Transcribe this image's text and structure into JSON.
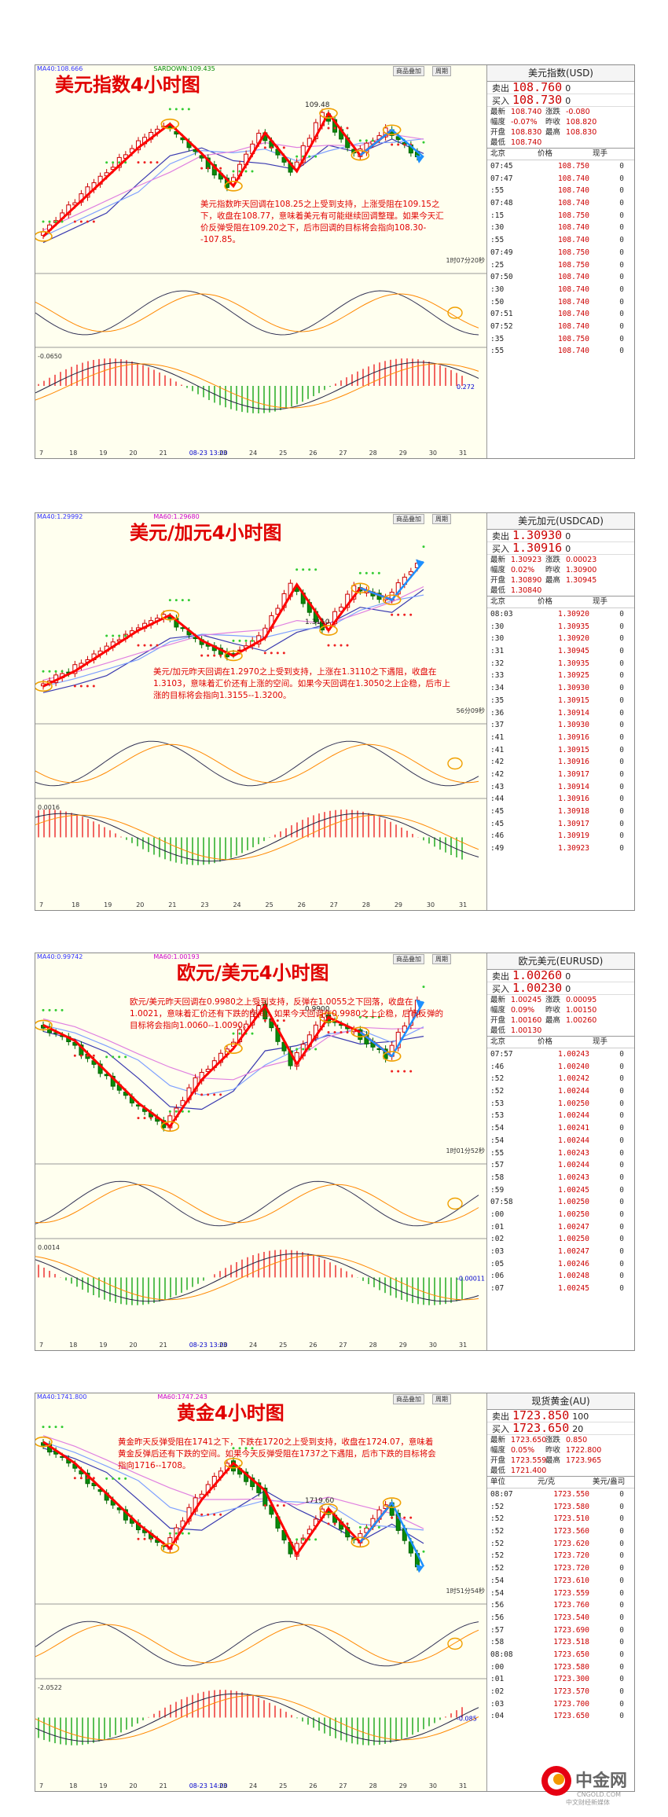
{
  "panels": [
    {
      "title": "美元指数4小时图",
      "note": "美元指数昨天回调在108.25之上受到支持，上涨受阻在109.15之下，收盘在108.77，意味着美元有可能继续回调整理。如果今天汇价反弹受阻在109.20之下，后市回调的目标将会指向108.30--107.85。",
      "indicator_top": "MA40:108.666",
      "sar_label": "SARDOWN:109.435",
      "high_label": "109.48",
      "timer": "1时07分20秒",
      "macd_label": "-0.0650",
      "macd_side": "0.272",
      "x_ticks": [
        "7",
        "18",
        "19",
        "20",
        "21",
        "08-23 13:00",
        "23",
        "24",
        "25",
        "26",
        "27",
        "28",
        "29",
        "30",
        "31"
      ],
      "quote": {
        "name": "美元指数(USD)",
        "sell_label": "卖出",
        "sell": "108.760",
        "sell_suffix": "0",
        "buy_label": "买入",
        "buy": "108.730",
        "buy_suffix": "0",
        "stats": [
          [
            "最新",
            "108.740",
            "涨跌",
            "-0.080"
          ],
          [
            "幅度",
            "-0.07%",
            "昨收",
            "108.820"
          ],
          [
            "开盘",
            "108.830",
            "最高",
            "108.830"
          ],
          [
            "最低",
            "108.740",
            "",
            ""
          ]
        ],
        "tick_head": [
          "北京",
          "价格",
          "现手"
        ],
        "ticks": [
          [
            "07:45",
            "108.750",
            "0"
          ],
          [
            "07:47",
            "108.740",
            "0"
          ],
          [
            ":55",
            "108.740",
            "0"
          ],
          [
            "07:48",
            "108.740",
            "0"
          ],
          [
            ":15",
            "108.750",
            "0"
          ],
          [
            ":30",
            "108.740",
            "0"
          ],
          [
            ":55",
            "108.740",
            "0"
          ],
          [
            "07:49",
            "108.750",
            "0"
          ],
          [
            ":25",
            "108.750",
            "0"
          ],
          [
            "07:50",
            "108.740",
            "0"
          ],
          [
            ":30",
            "108.740",
            "0"
          ],
          [
            ":50",
            "108.740",
            "0"
          ],
          [
            "07:51",
            "108.740",
            "0"
          ],
          [
            "07:52",
            "108.740",
            "0"
          ],
          [
            ":35",
            "108.750",
            "0"
          ],
          [
            ":55",
            "108.740",
            "0"
          ]
        ]
      }
    },
    {
      "title": "美元/加元4小时图",
      "note": "美元/加元昨天回调在1.2970之上受到支持，上涨在1.3110之下遇阻，收盘在1.3103，意味着汇价还有上涨的空间。如果今天回调在1.3050之上企稳，后市上涨的目标将会指向1.3155--1.3200。",
      "indicator_top": "MA40:1.29992",
      "sar_label": "MA60:1.29680",
      "high_label": "1.3110",
      "timer": "56分09秒",
      "macd_label": "0.0016",
      "macd_side": "",
      "x_ticks": [
        "7",
        "18",
        "19",
        "20",
        "21",
        "23",
        "24",
        "25",
        "26",
        "27",
        "28",
        "29",
        "30",
        "31"
      ],
      "quote": {
        "name": "美元加元(USDCAD)",
        "sell_label": "卖出",
        "sell": "1.30930",
        "sell_suffix": "0",
        "buy_label": "买入",
        "buy": "1.30916",
        "buy_suffix": "0",
        "stats": [
          [
            "最新",
            "1.30923",
            "涨跌",
            "0.00023"
          ],
          [
            "幅度",
            "0.02%",
            "昨收",
            "1.30900"
          ],
          [
            "开盘",
            "1.30890",
            "最高",
            "1.30945"
          ],
          [
            "最低",
            "1.30840",
            "",
            ""
          ]
        ],
        "tick_head": [
          "北京",
          "价格",
          "现手"
        ],
        "ticks": [
          [
            "08:03",
            "1.30920",
            "0"
          ],
          [
            ":30",
            "1.30935",
            "0"
          ],
          [
            ":30",
            "1.30920",
            "0"
          ],
          [
            ":31",
            "1.30945",
            "0"
          ],
          [
            ":32",
            "1.30935",
            "0"
          ],
          [
            ":33",
            "1.30925",
            "0"
          ],
          [
            ":34",
            "1.30930",
            "0"
          ],
          [
            ":35",
            "1.30915",
            "0"
          ],
          [
            ":36",
            "1.30914",
            "0"
          ],
          [
            ":37",
            "1.30930",
            "0"
          ],
          [
            ":41",
            "1.30916",
            "0"
          ],
          [
            ":41",
            "1.30915",
            "0"
          ],
          [
            ":42",
            "1.30916",
            "0"
          ],
          [
            ":42",
            "1.30917",
            "0"
          ],
          [
            ":43",
            "1.30914",
            "0"
          ],
          [
            ":44",
            "1.30916",
            "0"
          ],
          [
            ":45",
            "1.30918",
            "0"
          ],
          [
            ":45",
            "1.30917",
            "0"
          ],
          [
            ":46",
            "1.30919",
            "0"
          ],
          [
            ":49",
            "1.30923",
            "0"
          ]
        ]
      }
    },
    {
      "title": "欧元/美元4小时图",
      "note": "欧元/美元昨天回调在0.9980之上受到支持，反弹在1.0055之下回落，收盘在1.0021，意味着汇价还有下跌的空间。如果今天回调在0.9980之上企稳，后市反弹的目标将会指向1.0060--1.0090。",
      "indicator_top": "MA40:0.99742",
      "sar_label": "MA60:1.00193",
      "high_label": "0.9900",
      "timer": "1时01分52秒",
      "macd_label": "0.0014",
      "macd_side": "-0.00011",
      "x_ticks": [
        "7",
        "18",
        "19",
        "20",
        "21",
        "08-23 13:00",
        "23",
        "24",
        "25",
        "26",
        "27",
        "28",
        "29",
        "30",
        "31"
      ],
      "quote": {
        "name": "欧元美元(EURUSD)",
        "sell_label": "卖出",
        "sell": "1.00260",
        "sell_suffix": "0",
        "buy_label": "买入",
        "buy": "1.00230",
        "buy_suffix": "0",
        "stats": [
          [
            "最新",
            "1.00245",
            "涨跌",
            "0.00095"
          ],
          [
            "幅度",
            "0.09%",
            "昨收",
            "1.00150"
          ],
          [
            "开盘",
            "1.00160",
            "最高",
            "1.00260"
          ],
          [
            "最低",
            "1.00130",
            "",
            ""
          ]
        ],
        "tick_head": [
          "北京",
          "价格",
          "现手"
        ],
        "ticks": [
          [
            "07:57",
            "1.00243",
            "0"
          ],
          [
            ":46",
            "1.00240",
            "0"
          ],
          [
            ":52",
            "1.00242",
            "0"
          ],
          [
            ":52",
            "1.00244",
            "0"
          ],
          [
            ":53",
            "1.00250",
            "0"
          ],
          [
            ":53",
            "1.00244",
            "0"
          ],
          [
            ":54",
            "1.00241",
            "0"
          ],
          [
            ":54",
            "1.00244",
            "0"
          ],
          [
            ":55",
            "1.00243",
            "0"
          ],
          [
            ":57",
            "1.00244",
            "0"
          ],
          [
            ":58",
            "1.00243",
            "0"
          ],
          [
            ":59",
            "1.00245",
            "0"
          ],
          [
            "07:58",
            "1.00250",
            "0"
          ],
          [
            ":00",
            "1.00250",
            "0"
          ],
          [
            ":01",
            "1.00247",
            "0"
          ],
          [
            ":02",
            "1.00250",
            "0"
          ],
          [
            ":03",
            "1.00247",
            "0"
          ],
          [
            ":05",
            "1.00246",
            "0"
          ],
          [
            ":06",
            "1.00248",
            "0"
          ],
          [
            ":07",
            "1.00245",
            "0"
          ]
        ]
      }
    },
    {
      "title": "黄金4小时图",
      "note": "黄金昨天反弹受阻在1741之下，下跌在1720之上受到支持，收盘在1724.07，意味着黄金反弹后还有下跌的空间。如果今天反弹受阻在1737之下遇阻，后市下跌的目标将会指向1716--1708。",
      "indicator_top": "MA40:1741.800",
      "sar_label": "MA60:1747.243",
      "high_label": "1719.60",
      "timer": "1时51分54秒",
      "macd_label": "-2.0522",
      "macd_side": "-0.085",
      "x_ticks": [
        "7",
        "18",
        "19",
        "20",
        "21",
        "08-23 14:00",
        "23",
        "24",
        "25",
        "26",
        "27",
        "28",
        "29",
        "30",
        "31"
      ],
      "quote": {
        "name": "现货黄金(AU)",
        "sell_label": "卖出",
        "sell": "1723.850",
        "sell_suffix": "100",
        "buy_label": "买入",
        "buy": "1723.650",
        "buy_suffix": "20",
        "stats": [
          [
            "最新",
            "1723.650",
            "涨跌",
            "0.850"
          ],
          [
            "幅度",
            "0.05%",
            "昨收",
            "1722.800"
          ],
          [
            "开盘",
            "1723.559",
            "最高",
            "1723.965"
          ],
          [
            "最低",
            "1721.400",
            "",
            ""
          ]
        ],
        "tick_head": [
          "单位",
          "元/克",
          "美元/盎司"
        ],
        "ticks": [
          [
            "08:07",
            "1723.550",
            "0"
          ],
          [
            ":52",
            "1723.580",
            "0"
          ],
          [
            ":52",
            "1723.510",
            "0"
          ],
          [
            ":52",
            "1723.560",
            "0"
          ],
          [
            ":52",
            "1723.620",
            "0"
          ],
          [
            ":52",
            "1723.720",
            "0"
          ],
          [
            ":52",
            "1723.720",
            "0"
          ],
          [
            ":54",
            "1723.610",
            "0"
          ],
          [
            ":54",
            "1723.559",
            "0"
          ],
          [
            ":56",
            "1723.760",
            "0"
          ],
          [
            ":56",
            "1723.540",
            "0"
          ],
          [
            ":57",
            "1723.690",
            "0"
          ],
          [
            ":58",
            "1723.518",
            "0"
          ],
          [
            "08:08",
            "1723.650",
            "0"
          ],
          [
            ":00",
            "1723.580",
            "0"
          ],
          [
            ":01",
            "1723.300",
            "0"
          ],
          [
            ":02",
            "1723.570",
            "0"
          ],
          [
            ":03",
            "1723.700",
            "0"
          ],
          [
            ":04",
            "1723.650",
            "0"
          ]
        ]
      }
    }
  ],
  "top_buttons": [
    "商品叠加",
    "周期"
  ],
  "logo": {
    "name": "中金网",
    "domain": "CNGOLD.COM",
    "slogan": "中文财经新媒体"
  },
  "colors": {
    "title": "#e00000",
    "trend": "#ff0000",
    "projection": "#1e90ff",
    "ellipse": "#f0a000"
  },
  "chart_data": [
    {
      "type": "line",
      "title": "美元指数4小时图",
      "series": [
        {
          "values": [
            107.4,
            107.9,
            108.4,
            108.9,
            109.3,
            108.8,
            108.25,
            109.15,
            108.5,
            109.48,
            108.77,
            109.2,
            108.74
          ]
        }
      ]
    },
    {
      "type": "line",
      "title": "美元/加元4小时图",
      "series": [
        {
          "values": [
            1.291,
            1.294,
            1.298,
            1.302,
            1.305,
            1.3,
            1.297,
            1.3005,
            1.311,
            1.302,
            1.3103,
            1.308,
            1.3155
          ]
        }
      ]
    },
    {
      "type": "line",
      "title": "欧元/美元4小时图",
      "series": [
        {
          "values": [
            1.003,
            1.001,
            0.997,
            0.993,
            0.99,
            0.996,
            1.0,
            1.0055,
            0.998,
            1.004,
            1.0021,
            0.999,
            1.006
          ]
        }
      ]
    },
    {
      "type": "line",
      "title": "黄金4小时图",
      "series": [
        {
          "values": [
            1757,
            1750,
            1740,
            1730,
            1722,
            1738,
            1750,
            1741,
            1720,
            1735,
            1724,
            1737,
            1716
          ]
        }
      ]
    }
  ]
}
